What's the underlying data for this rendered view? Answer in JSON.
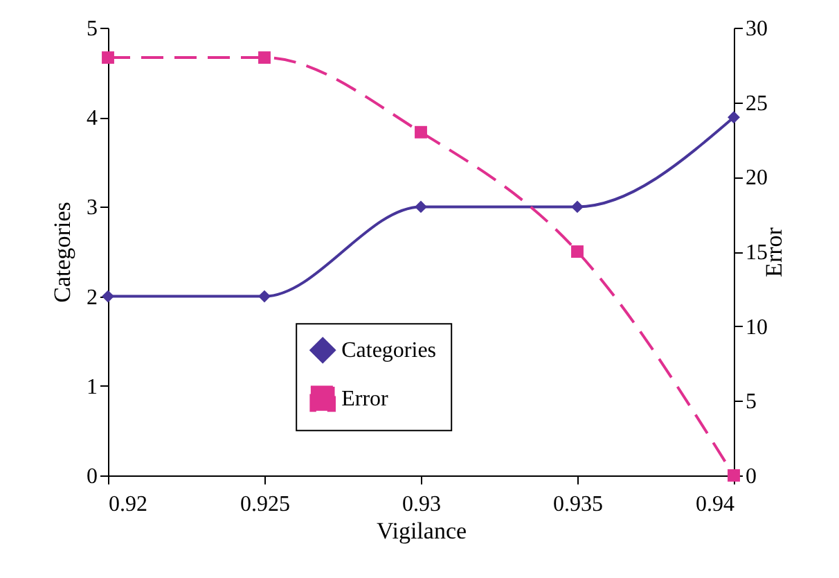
{
  "chart_data": {
    "type": "line",
    "xlabel": "Vigilance",
    "ylabel": "Categories",
    "y2label": "Error",
    "x": [
      0.92,
      0.925,
      0.93,
      0.935,
      0.94
    ],
    "series": [
      {
        "name": "Categories",
        "color": "#47359a",
        "values": [
          2,
          2,
          3,
          3,
          4
        ],
        "marker": "diamond",
        "line_style": "solid"
      },
      {
        "name": "Error",
        "color": "#e0308f",
        "values": [
          28,
          28,
          23,
          15,
          0
        ],
        "axis": "y2",
        "marker": "square",
        "line_style": "dashed"
      }
    ],
    "xlim": [
      0.92,
      0.94
    ],
    "xticks": [
      0.92,
      0.925,
      0.93,
      0.935,
      0.94
    ],
    "ylim": [
      0,
      5
    ],
    "yticks": [
      0,
      1,
      2,
      3,
      4,
      5
    ],
    "y2lim": [
      0,
      30
    ],
    "y2ticks": [
      0,
      5,
      10,
      15,
      20,
      25,
      30
    ],
    "grid": false,
    "legend": "bottom"
  }
}
